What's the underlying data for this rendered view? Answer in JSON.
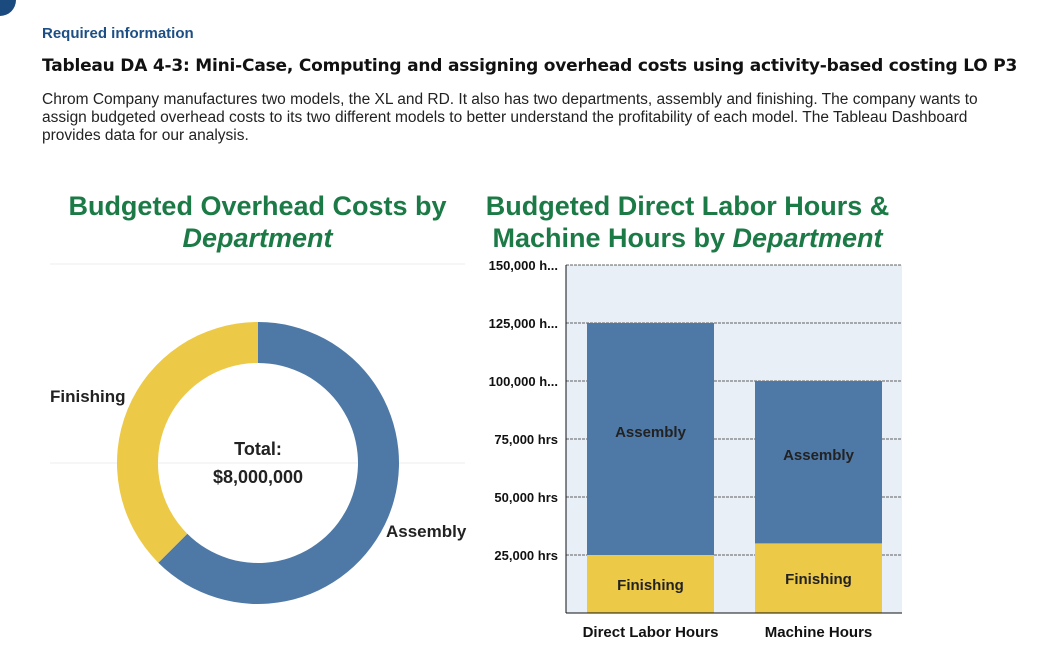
{
  "header": {
    "required": "Required information",
    "title": "Tableau DA 4-3: Mini-Case, Computing and assigning overhead costs using activity-based costing LO P3",
    "description": "Chrom Company manufactures two models, the XL and RD. It also has two departments, assembly and finishing. The company wants to assign budgeted overhead costs to its two different models to better understand the profitability of each model. The Tableau Dashboard provides data for our analysis."
  },
  "chart_data": [
    {
      "type": "pie",
      "title_line1": "Budgeted Overhead Costs by",
      "title_line2": "Department",
      "center_label": "Total:",
      "center_value": "$8,000,000",
      "slices": [
        {
          "label": "Assembly",
          "value": 5000000,
          "color": "#4e79a7"
        },
        {
          "label": "Finishing",
          "value": 3000000,
          "color": "#edc948"
        }
      ]
    },
    {
      "type": "bar",
      "stacked": true,
      "title_line1": "Budgeted Direct Labor Hours &",
      "title_line2a": "Machine Hours by ",
      "title_line2b": "Department",
      "categories": [
        "Direct Labor Hours",
        "Machine Hours"
      ],
      "series": [
        {
          "name": "Finishing",
          "values": [
            25000,
            30000
          ],
          "color": "#edc948"
        },
        {
          "name": "Assembly",
          "values": [
            100000,
            70000
          ],
          "color": "#4e79a7"
        }
      ],
      "ylim": [
        0,
        150000
      ],
      "yticks": [
        {
          "v": 25000,
          "label": "25,000 hrs"
        },
        {
          "v": 50000,
          "label": "50,000 hrs"
        },
        {
          "v": 75000,
          "label": "75,000 hrs"
        },
        {
          "v": 100000,
          "label": "100,000 h..."
        },
        {
          "v": 125000,
          "label": "125,000 h..."
        },
        {
          "v": 150000,
          "label": "150,000 h..."
        }
      ],
      "grid": true,
      "background": "#e8eff6"
    }
  ]
}
